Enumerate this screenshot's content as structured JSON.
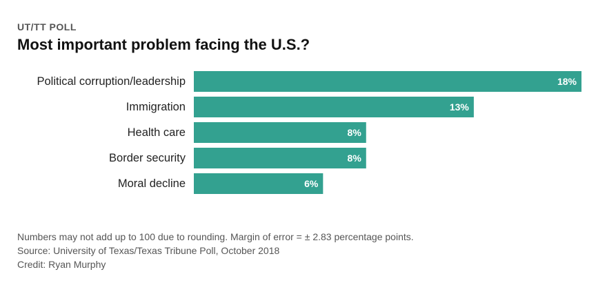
{
  "kicker": "UT/TT POLL",
  "chart_data": {
    "type": "bar",
    "orientation": "horizontal",
    "title": "Most important problem facing the U.S.?",
    "categories": [
      "Political corruption/leadership",
      "Immigration",
      "Health care",
      "Border security",
      "Moral decline"
    ],
    "values": [
      18,
      13,
      8,
      8,
      6
    ],
    "value_labels": [
      "18%",
      "13%",
      "8%",
      "8%",
      "6%"
    ],
    "xlim": [
      0,
      18
    ],
    "grid": false,
    "bar_color": "#33a190"
  },
  "notes": {
    "line1": "Numbers may not add up to 100 due to rounding. Margin of error = ± 2.83 percentage points.",
    "source": "Source: University of Texas/Texas Tribune Poll, October 2018",
    "credit": "Credit: Ryan Murphy"
  }
}
